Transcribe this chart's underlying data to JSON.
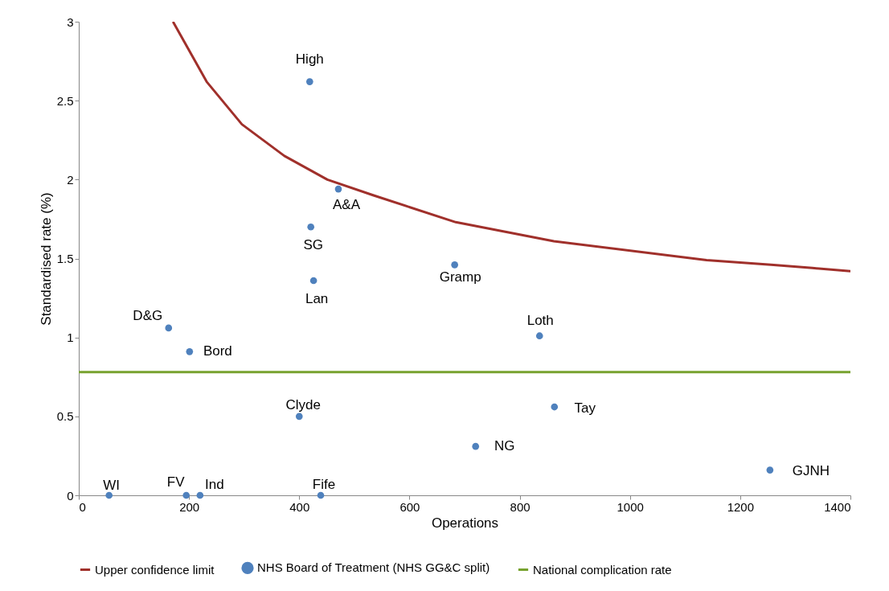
{
  "chart_data": {
    "type": "scatter",
    "xlabel": "Operations",
    "ylabel": "Standardised rate (%)",
    "xlim": [
      0,
      1400
    ],
    "xticks": [
      0,
      200,
      400,
      600,
      800,
      1000,
      1200,
      1400
    ],
    "ylim": [
      0,
      3
    ],
    "yticks": [
      0,
      0.5,
      1,
      1.5,
      2,
      2.5,
      3
    ],
    "grid": false,
    "legend": "bottom",
    "series": [
      {
        "name": "Upper confidence limit",
        "type": "line",
        "marker": "none",
        "color": "#a0302b",
        "x": [
          171,
          232,
          296,
          373,
          451,
          535,
          684,
          862,
          1139,
          1256,
          1331,
          1400
        ],
        "values": [
          3.0,
          2.62,
          2.35,
          2.15,
          2.0,
          1.9,
          1.73,
          1.61,
          1.49,
          1.46,
          1.44,
          1.42
        ]
      },
      {
        "name": "NHS Board of Treatment (NHS GG&C split)",
        "marker": "circle",
        "color": "#4f81bd",
        "x": [
          419,
          471,
          421,
          426,
          682,
          163,
          201,
          836,
          400,
          863,
          720,
          1254,
          55,
          195,
          220,
          439
        ],
        "values": [
          2.62,
          1.94,
          1.7,
          1.36,
          1.46,
          1.06,
          0.91,
          1.01,
          0.5,
          0.56,
          0.31,
          0.16,
          0,
          0,
          0,
          0
        ]
      }
    ],
    "ref_lines": [
      {
        "axis": "y",
        "value": 0.78,
        "label": "National complication rate",
        "color": "#77a22f"
      }
    ],
    "annotations": [
      {
        "text": "High",
        "x": 419,
        "y": 2.62
      },
      {
        "text": "A&A",
        "x": 471,
        "y": 1.94
      },
      {
        "text": "SG",
        "x": 421,
        "y": 1.7
      },
      {
        "text": "Lan",
        "x": 426,
        "y": 1.36
      },
      {
        "text": "Gramp",
        "x": 682,
        "y": 1.46
      },
      {
        "text": "D&G",
        "x": 163,
        "y": 1.06
      },
      {
        "text": "Bord",
        "x": 201,
        "y": 0.91
      },
      {
        "text": "Loth",
        "x": 836,
        "y": 1.01
      },
      {
        "text": "Clyde",
        "x": 400,
        "y": 0.5
      },
      {
        "text": "Tay",
        "x": 863,
        "y": 0.56
      },
      {
        "text": "NG",
        "x": 720,
        "y": 0.31
      },
      {
        "text": "GJNH",
        "x": 1254,
        "y": 0.16
      },
      {
        "text": "WI",
        "x": 55,
        "y": 0
      },
      {
        "text": "FV",
        "x": 195,
        "y": 0
      },
      {
        "text": "Ind",
        "x": 220,
        "y": 0
      },
      {
        "text": "Fife",
        "x": 439,
        "y": 0
      }
    ]
  }
}
